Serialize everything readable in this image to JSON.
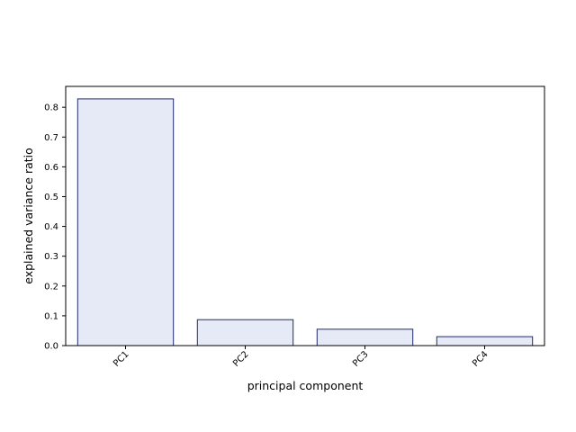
{
  "chart_data": {
    "type": "bar",
    "title": "",
    "xlabel": "principal component",
    "ylabel": "explained variance ratio",
    "categories": [
      "PC1",
      "PC2",
      "PC3",
      "PC4"
    ],
    "values": [
      0.828,
      0.087,
      0.055,
      0.03
    ],
    "ylim": [
      0,
      0.87
    ],
    "yticks": [
      0.0,
      0.1,
      0.2,
      0.3,
      0.4,
      0.5,
      0.6,
      0.7,
      0.8
    ],
    "ytick_labels": [
      "0.0",
      "0.1",
      "0.2",
      "0.3",
      "0.4",
      "0.5",
      "0.6",
      "0.7",
      "0.8"
    ],
    "grid": false,
    "legend": "none",
    "colors": {
      "bar_fill": "#e6eaf7",
      "bar_edge": "#1f2a6b",
      "axis": "#000000"
    }
  }
}
